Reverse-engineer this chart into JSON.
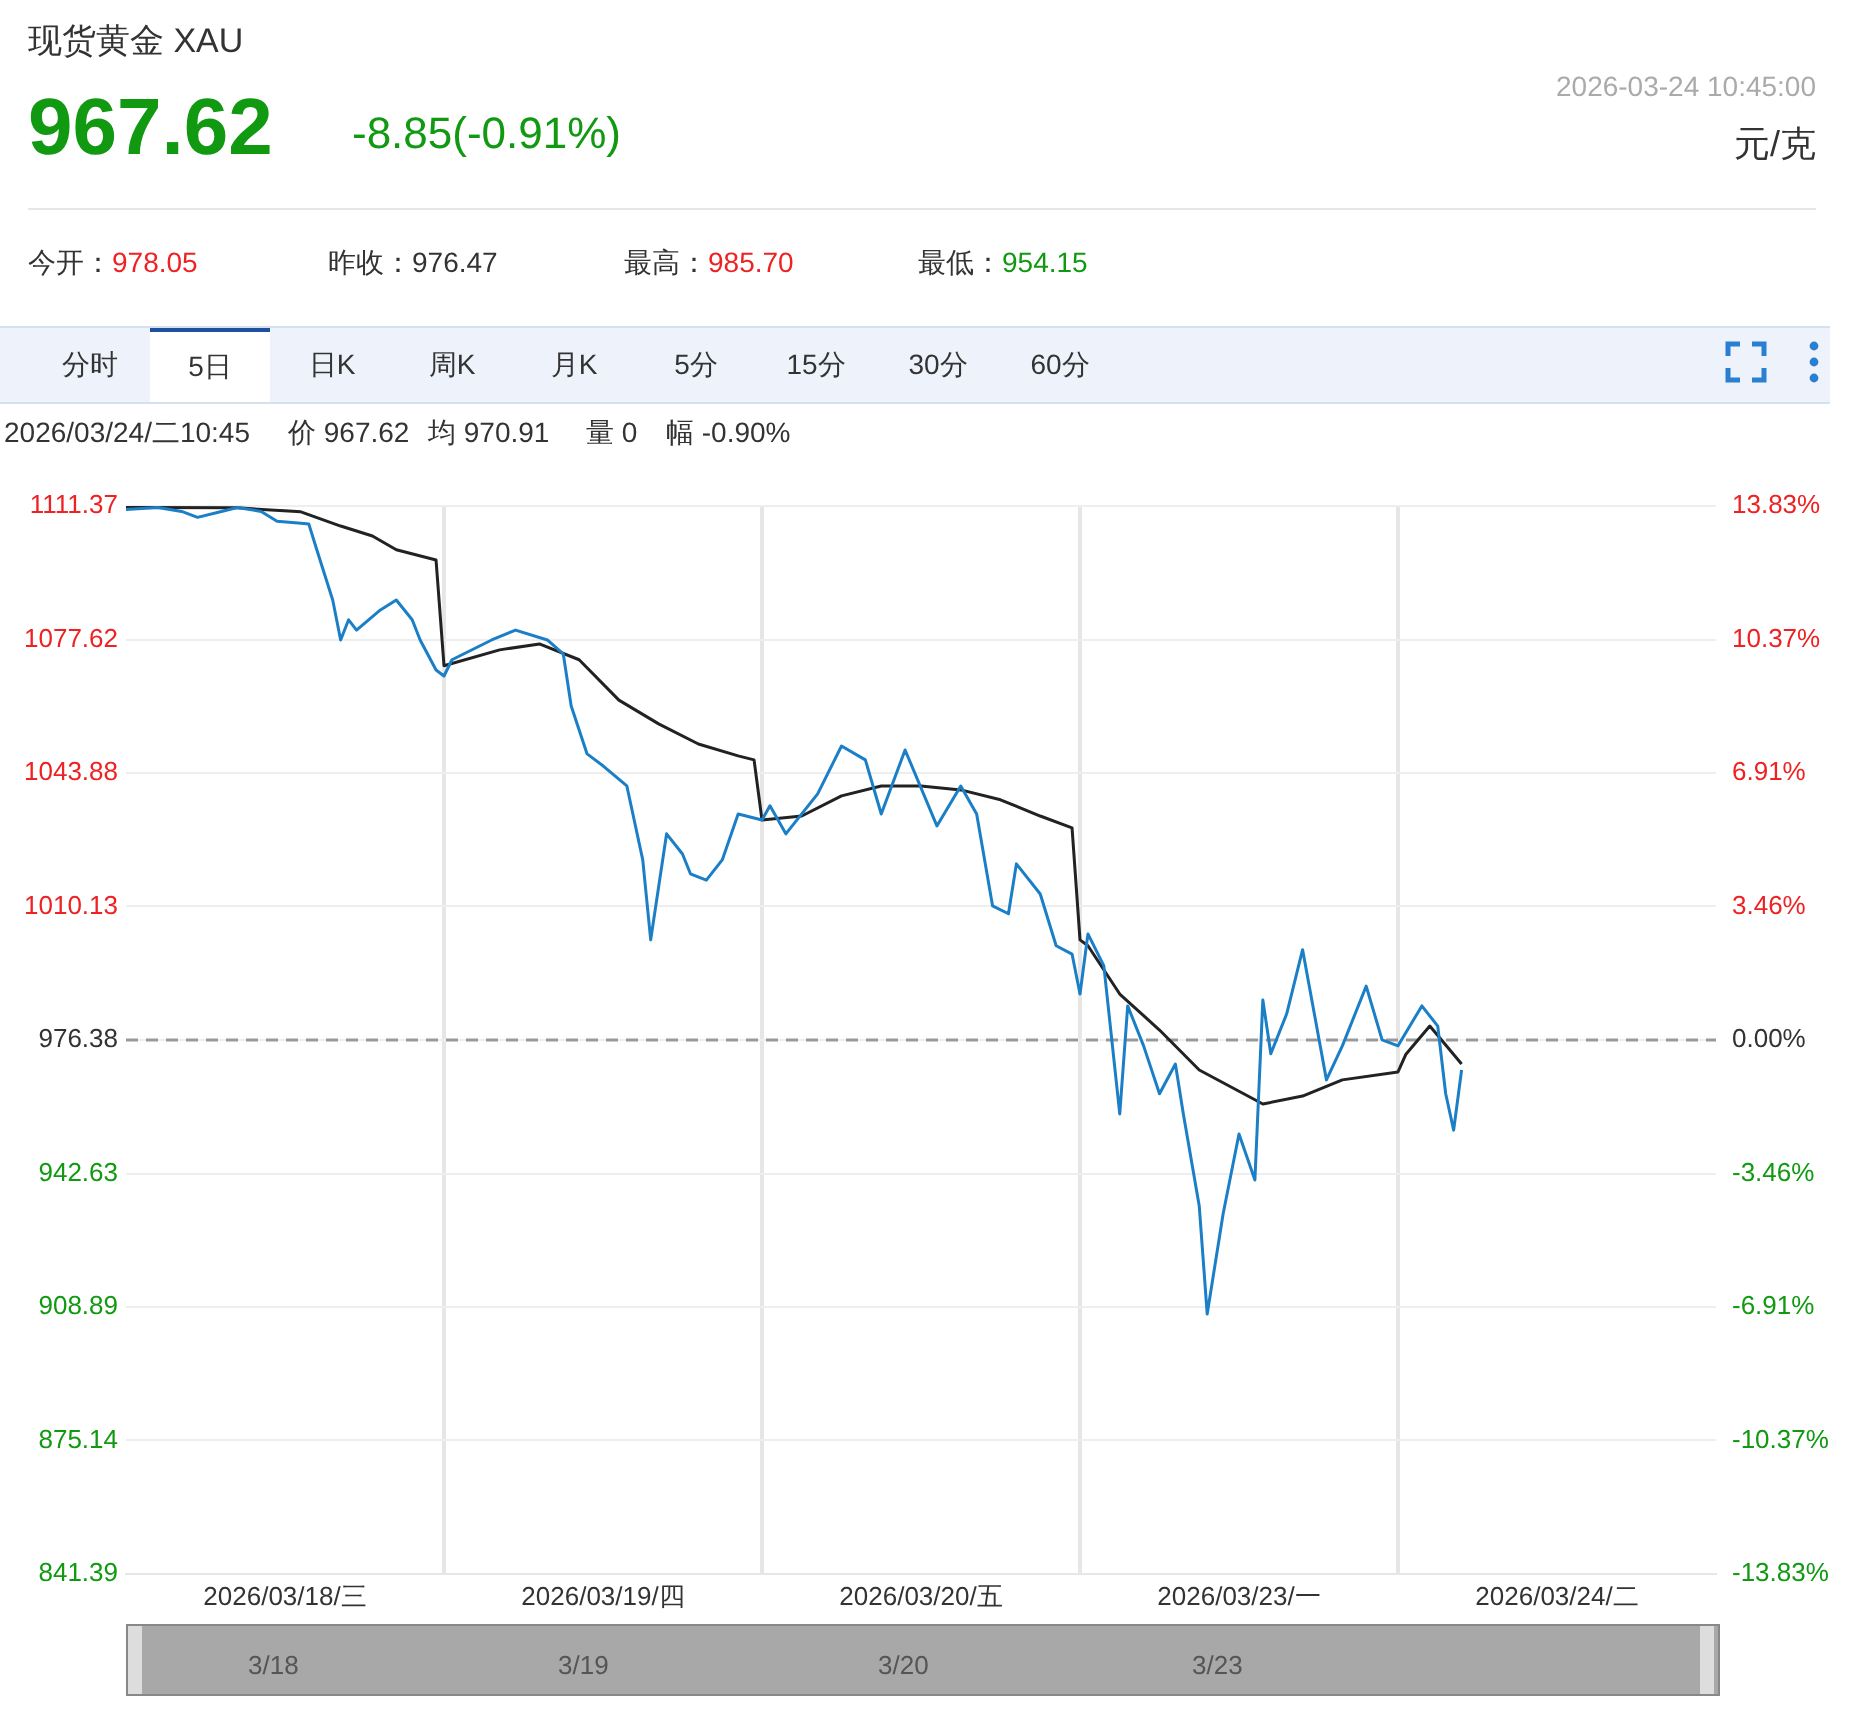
{
  "chart_data": {
    "type": "line",
    "title": "现货黄金 XAU",
    "annotations": [
      "967.62",
      "-8.85(-0.91%)",
      "2026-03-24 10:45:00",
      "元/克",
      "今开：978.05",
      "昨收：976.47",
      "最高：985.70",
      "最低：954.15",
      "分时",
      "5日",
      "日K",
      "周K",
      "月K",
      "5分",
      "15分",
      "30分",
      "60分",
      "2026/03/24/二10:45",
      "价 967.62",
      "均 970.91",
      "量 0",
      "幅 -0.90%",
      "3/18",
      "3/19",
      "3/20",
      "3/23"
    ],
    "categories": [
      null,
      null,
      null,
      null,
      null,
      null,
      null,
      null,
      null,
      null,
      null,
      null,
      null,
      null,
      null,
      null,
      null,
      null,
      null,
      null,
      "2026/03/18/三",
      null,
      null,
      null,
      null,
      null,
      null,
      null,
      null,
      null,
      null,
      null,
      null,
      null,
      null,
      null,
      null,
      null,
      null,
      null,
      null,
      null,
      null,
      null,
      null,
      null,
      null,
      null,
      null,
      null,
      null,
      null,
      null,
      null,
      null,
      null,
      null,
      null,
      null,
      null,
      "2026/03/19/四",
      null,
      null,
      null,
      null,
      null,
      null,
      null,
      null,
      null,
      null,
      null,
      null,
      null,
      null,
      null,
      null,
      null,
      null,
      null,
      null,
      null,
      null,
      null,
      null,
      null,
      null,
      null,
      null,
      null,
      null,
      null,
      null,
      null,
      null,
      null,
      null,
      null,
      null,
      null,
      "2026/03/20/五",
      null,
      null,
      null,
      null,
      null,
      null,
      null,
      null,
      null,
      null,
      null,
      null,
      null,
      null,
      null,
      null,
      null,
      null,
      null,
      null,
      null,
      null,
      null,
      null,
      null,
      null,
      null,
      null,
      null,
      null,
      null,
      null,
      null,
      null,
      null,
      null,
      null,
      null,
      null,
      "2026/03/23/一",
      null,
      null,
      null,
      null,
      null,
      null,
      null,
      null,
      null,
      null,
      null,
      null,
      null,
      null,
      null,
      null,
      null,
      null,
      null,
      null,
      null,
      null,
      null,
      null,
      null,
      null,
      null,
      null,
      null,
      null,
      null,
      null,
      null,
      null,
      null,
      null,
      null,
      null,
      null,
      "2026/03/24/二",
      null,
      null,
      null,
      null,
      null,
      null,
      null,
      null,
      null,
      null,
      null,
      null,
      null,
      null,
      null,
      null,
      null,
      null,
      null,
      null
    ],
    "series": [
      {
        "color": "#1a7fc6",
        "values": [
          1110.5,
          null,
          null,
          null,
          1111.0,
          null,
          null,
          1110.0,
          null,
          1108.5,
          null,
          null,
          1110.0,
          null,
          1111.0,
          null,
          null,
          1110.0,
          null,
          1107.5,
          null,
          null,
          1107.0,
          1106.8,
          1100.3,
          null,
          1087.6,
          1077.5,
          1082.6,
          1080.0,
          null,
          null,
          1085.1,
          null,
          1087.6,
          null,
          1082.6,
          1077.5,
          null,
          1069.9,
          1068.4,
          1072.5,
          null,
          null,
          null,
          null,
          1077.5,
          null,
          null,
          1080.0,
          null,
          null,
          null,
          1077.5,
          null,
          1074.0,
          1060.8,
          null,
          1048.7,
          null,
          1045.7,
          null,
          null,
          1040.6,
          null,
          1021.9,
          1001.7,
          null,
          1028.5,
          null,
          1023.4,
          1018.4,
          null,
          1016.8,
          null,
          1021.9,
          null,
          1033.5,
          null,
          null,
          1032.0,
          1035.6,
          null,
          1028.5,
          null,
          null,
          null,
          1038.6,
          null,
          null,
          1050.7,
          null,
          null,
          1047.2,
          null,
          1033.5,
          null,
          null,
          1049.7,
          null,
          null,
          null,
          1030.5,
          null,
          null,
          1040.6,
          null,
          1033.5,
          null,
          1010.3,
          null,
          1008.3,
          1020.9,
          null,
          null,
          1013.3,
          null,
          1000.2,
          null,
          998.1,
          988.0,
          1003.2,
          null,
          995.1,
          null,
          957.7,
          985.0,
          null,
          974.9,
          null,
          962.8,
          null,
          970.3,
          957.7,
          null,
          934.4,
          907.1,
          null,
          932.4,
          null,
          952.6,
          null,
          941.0,
          986.5,
          972.9,
          null,
          983.0,
          null,
          999.2,
          null,
          null,
          966.3,
          null,
          974.9,
          null,
          null,
          990.0,
          null,
          976.4,
          null,
          974.9,
          null,
          null,
          985.0,
          null,
          979.9,
          962.8,
          953.6,
          968.8,
          null,
          null,
          null,
          null,
          null,
          null,
          null,
          null,
          null,
          null,
          null,
          null,
          null,
          null,
          null,
          null,
          null,
          null,
          null,
          null,
          null,
          null,
          null,
          null,
          null,
          null,
          null,
          null,
          null,
          null,
          null,
          null
        ]
      },
      {
        "color": "#222222",
        "values": [
          1111.0,
          null,
          null,
          null,
          null,
          null,
          null,
          null,
          null,
          null,
          null,
          null,
          null,
          null,
          1110.9,
          null,
          null,
          null,
          null,
          null,
          null,
          null,
          1109.9,
          null,
          null,
          null,
          null,
          1106.3,
          null,
          null,
          null,
          1103.8,
          null,
          null,
          1100.3,
          null,
          null,
          null,
          null,
          1097.7,
          1071.0,
          null,
          null,
          null,
          null,
          null,
          null,
          1075.0,
          null,
          null,
          null,
          null,
          1076.5,
          null,
          null,
          null,
          null,
          1072.5,
          null,
          null,
          null,
          null,
          1062.3,
          null,
          null,
          null,
          null,
          1056.3,
          null,
          null,
          null,
          null,
          1051.2,
          null,
          null,
          null,
          null,
          1048.2,
          null,
          1047.2,
          1032.0,
          null,
          null,
          null,
          null,
          1033.0,
          null,
          null,
          null,
          null,
          1038.1,
          null,
          null,
          null,
          null,
          1040.6,
          null,
          null,
          null,
          null,
          1040.6,
          null,
          null,
          null,
          null,
          1039.6,
          null,
          null,
          null,
          null,
          1037.1,
          null,
          null,
          null,
          null,
          1033.0,
          null,
          null,
          null,
          1030.0,
          1001.7,
          1000.2,
          null,
          null,
          null,
          988.0,
          null,
          null,
          null,
          null,
          978.9,
          null,
          null,
          null,
          null,
          968.8,
          null,
          null,
          null,
          null,
          null,
          null,
          null,
          960.2,
          null,
          null,
          null,
          null,
          962.2,
          null,
          null,
          null,
          null,
          966.3,
          null,
          null,
          null,
          null,
          null,
          null,
          968.3,
          972.8,
          null,
          null,
          979.9,
          null,
          null,
          null,
          970.3,
          null,
          null,
          null,
          null,
          null,
          null,
          null,
          null,
          null,
          null,
          null,
          null,
          null,
          null,
          null,
          null,
          null,
          null,
          null,
          null,
          null,
          null,
          null,
          null,
          null,
          null,
          null,
          null,
          null,
          null,
          null,
          null
        ]
      }
    ],
    "ylim": [
      841.39,
      1111.37
    ],
    "yticks": [
      841.39,
      875.14,
      908.89,
      942.63,
      976.38,
      1010.13,
      1043.88,
      1077.62,
      1111.37
    ],
    "y2lim": [
      -13.83,
      13.83
    ],
    "y2ticks": [
      {
        "value": -13.83,
        "label": "-13.83%"
      },
      {
        "value": -10.37,
        "label": "-10.37%"
      },
      {
        "value": -6.91,
        "label": "-6.91%"
      },
      {
        "value": -3.46,
        "label": "-3.46%"
      },
      {
        "value": 0,
        "label": "0.00%"
      },
      {
        "value": 3.46,
        "label": "3.46%"
      },
      {
        "value": 6.91,
        "label": "6.91%"
      },
      {
        "value": 10.37,
        "label": "10.37%"
      },
      {
        "value": 13.83,
        "label": "13.83%"
      }
    ],
    "ref_lines": [
      {
        "axis": "y",
        "value": 976.38,
        "color": "#999999",
        "line_style": "dashed"
      }
    ],
    "grid": "y",
    "marker": "none",
    "line_style": "solid"
  }
}
